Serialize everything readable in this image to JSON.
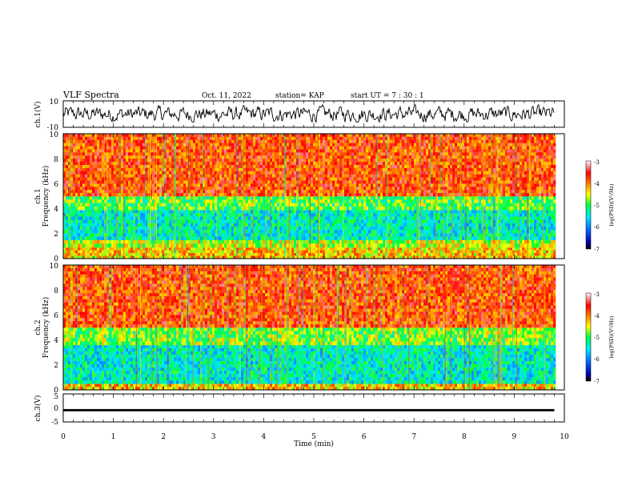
{
  "header": {
    "title": "VLF Spectra",
    "date": "Oct. 11, 2022",
    "station": "station= KAP",
    "start": "start  UT  =   7 : 30 : 1"
  },
  "chart_data": [
    {
      "type": "line",
      "name": "ch1-waveform",
      "ylabel": "ch.1(V)",
      "ylim": [
        -10,
        10
      ],
      "yticks": [
        "10",
        "-10"
      ],
      "x_range_min": [
        0,
        9.8
      ],
      "description_values": "noise waveform mostly between -5 and 6 V"
    },
    {
      "type": "heatmap",
      "name": "ch1-spectrogram",
      "ylabel_lines": [
        "ch.1",
        "Frequency (kHz)"
      ],
      "ylim": [
        0,
        10
      ],
      "yticks": [
        "0",
        "2",
        "4",
        "6",
        "8",
        "10"
      ],
      "x_range_min": [
        0,
        9.8
      ],
      "bands_khz": [
        {
          "from": 0.0,
          "to": 0.9,
          "level": -4.3
        },
        {
          "from": 0.9,
          "to": 1.5,
          "level": -4.6
        },
        {
          "from": 1.5,
          "to": 3.9,
          "level": -5.4
        },
        {
          "from": 3.9,
          "to": 5.0,
          "level": -4.9
        },
        {
          "from": 5.0,
          "to": 10.0,
          "level": -3.8
        }
      ],
      "colorbar": {
        "min": -7,
        "max": -3,
        "ticks": [
          "-3",
          "-4",
          "-5",
          "-6",
          "-7"
        ],
        "label": "log(PSD)(V²/Hz)"
      }
    },
    {
      "type": "heatmap",
      "name": "ch2-spectrogram",
      "ylabel_lines": [
        "ch.2",
        "Frequency (kHz)"
      ],
      "ylim": [
        0,
        10
      ],
      "yticks": [
        "0",
        "2",
        "4",
        "6",
        "8",
        "10"
      ],
      "x_range_min": [
        0,
        9.8
      ],
      "bands_khz": [
        {
          "from": 0.0,
          "to": 0.5,
          "level": -4.3
        },
        {
          "from": 0.5,
          "to": 3.6,
          "level": -5.4
        },
        {
          "from": 3.6,
          "to": 5.0,
          "level": -4.8
        },
        {
          "from": 5.0,
          "to": 10.0,
          "level": -3.8
        }
      ],
      "colorbar": {
        "min": -7,
        "max": -3,
        "ticks": [
          "-3",
          "-4",
          "-5",
          "-6",
          "-7"
        ],
        "label": "log(PSD)(V²/Hz)"
      }
    },
    {
      "type": "line",
      "name": "ch3-signal",
      "ylabel": "ch.3(V)",
      "ylim": [
        -5,
        5
      ],
      "yticks": [
        "5",
        "0",
        "-5"
      ],
      "x_range_min": [
        0,
        9.8
      ],
      "level_band_v": [
        -1.2,
        -0.4
      ]
    }
  ],
  "xaxis": {
    "label": "Time  (min)",
    "ticks": [
      "0",
      "1",
      "2",
      "3",
      "4",
      "5",
      "6",
      "7",
      "8",
      "9",
      "10"
    ]
  }
}
